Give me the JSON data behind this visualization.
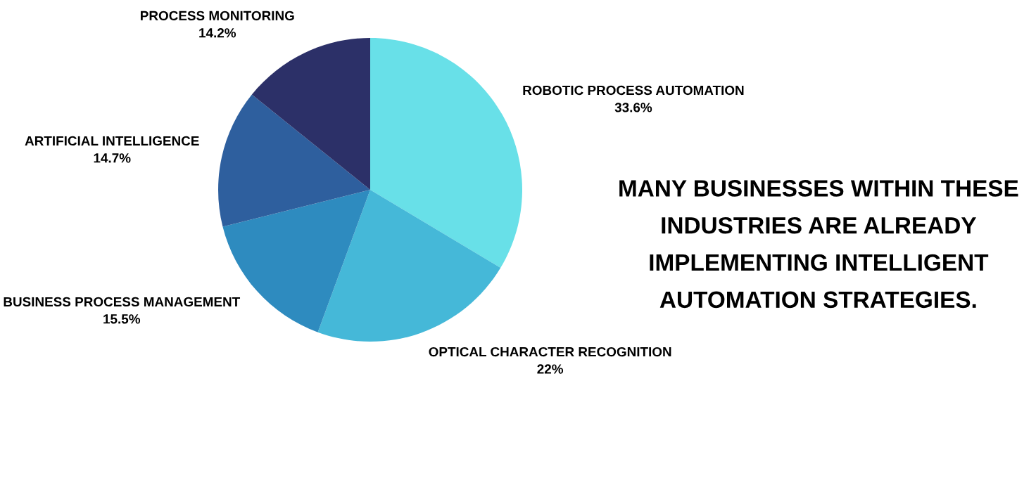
{
  "chart_data": {
    "type": "pie",
    "categories": [
      "ROBOTIC PROCESS AUTOMATION",
      "OPTICAL CHARACTER RECOGNITION",
      "BUSINESS PROCESS MANAGEMENT",
      "ARTIFICIAL INTELLIGENCE",
      "PROCESS MONITORING"
    ],
    "values": [
      33.6,
      22,
      15.5,
      14.7,
      14.2
    ],
    "value_labels": [
      "33.6%",
      "22%",
      "15.5%",
      "14.7%",
      "14.2%"
    ],
    "colors": [
      "#68e0e8",
      "#45b8d8",
      "#2e8bbf",
      "#2e5f9e",
      "#2c3068"
    ],
    "annotations": [
      "MANY BUSINESSES WITHIN THESE\nINDUSTRIES ARE ALREADY\nIMPLEMENTING INTELLIGENT\nAUTOMATION STRATEGIES."
    ],
    "legend": false
  }
}
